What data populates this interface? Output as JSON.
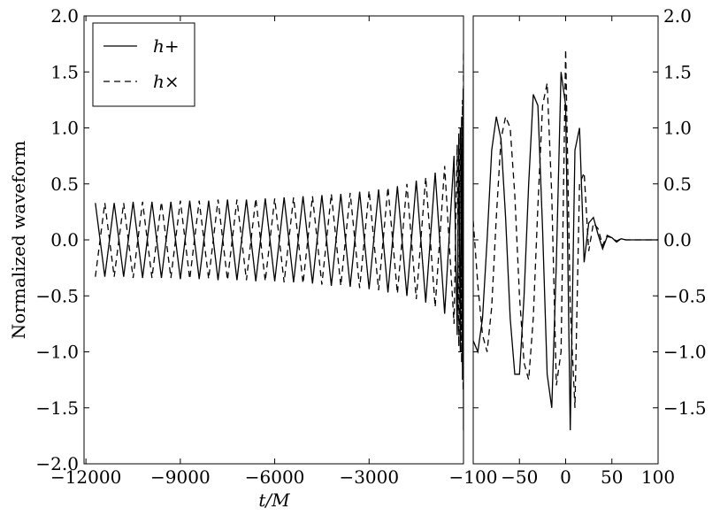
{
  "chart_data": [
    {
      "type": "line",
      "ylabel": "Normalized waveform",
      "xlabel": "t/M",
      "legend": "upper left",
      "xlim": [
        -12060,
        0
      ],
      "ylim": [
        -2,
        2
      ],
      "xticks": [
        {
          "value": -12000,
          "label": "−12000"
        },
        {
          "value": -9000,
          "label": "−9000"
        },
        {
          "value": -6000,
          "label": "−6000"
        },
        {
          "value": -3000,
          "label": "−3000"
        }
      ],
      "yticks": [
        {
          "value": -2,
          "label": "−2.0"
        },
        {
          "value": -1.5,
          "label": "−1.5"
        },
        {
          "value": -1,
          "label": "−1.0"
        },
        {
          "value": -0.5,
          "label": "−0.5"
        },
        {
          "value": 0,
          "label": "0.0"
        },
        {
          "value": 0.5,
          "label": "0.5"
        },
        {
          "value": 1,
          "label": "1.0"
        },
        {
          "value": 1.5,
          "label": "1.5"
        },
        {
          "value": 2,
          "label": "2.0"
        }
      ],
      "yaxis_side": "left",
      "x": [
        -11700,
        -11400,
        -11100,
        -10800,
        -10500,
        -10200,
        -9900,
        -9600,
        -9300,
        -9000,
        -8700,
        -8400,
        -8100,
        -7800,
        -7500,
        -7200,
        -6900,
        -6600,
        -6300,
        -6000,
        -5700,
        -5400,
        -5100,
        -4800,
        -4500,
        -4200,
        -3900,
        -3600,
        -3300,
        -3000,
        -2700,
        -2400,
        -2100,
        -1800,
        -1500,
        -1200,
        -900,
        -600,
        -300,
        -200,
        -150,
        -100,
        -60,
        -30,
        -10,
        0
      ],
      "series": [
        {
          "name": "h+",
          "color": "#000000",
          "dash": "solid",
          "values": [
            0.33,
            -0.33,
            0.33,
            -0.33,
            0.34,
            -0.34,
            0.34,
            -0.34,
            0.34,
            -0.35,
            0.35,
            -0.35,
            0.35,
            -0.36,
            0.36,
            -0.36,
            0.36,
            -0.37,
            0.37,
            -0.37,
            0.38,
            -0.38,
            0.39,
            -0.39,
            0.4,
            -0.41,
            0.41,
            -0.42,
            0.43,
            -0.44,
            0.45,
            -0.47,
            0.48,
            -0.5,
            0.53,
            -0.56,
            0.6,
            -0.66,
            0.75,
            -0.85,
            0.95,
            -1.0,
            1.1,
            -1.25,
            1.35,
            -1.7
          ]
        },
        {
          "name": "h×",
          "color": "#000000",
          "dash": "dashed",
          "values": [
            -0.33,
            0.33,
            -0.33,
            0.33,
            -0.34,
            0.34,
            -0.34,
            0.34,
            -0.34,
            0.35,
            -0.35,
            0.35,
            -0.35,
            0.36,
            -0.36,
            0.36,
            -0.36,
            0.37,
            -0.37,
            0.37,
            -0.38,
            0.38,
            -0.39,
            0.39,
            -0.4,
            0.41,
            -0.41,
            0.42,
            -0.43,
            0.44,
            -0.45,
            0.47,
            -0.48,
            0.5,
            -0.53,
            0.56,
            -0.6,
            0.66,
            -0.75,
            0.85,
            -0.95,
            1.0,
            -1.1,
            1.25,
            -1.35,
            1.7
          ]
        }
      ]
    },
    {
      "type": "line",
      "xlim": [
        -100,
        100
      ],
      "ylim": [
        -2,
        2
      ],
      "xticks": [
        {
          "value": -100,
          "label": "−100"
        },
        {
          "value": -50,
          "label": "−50"
        },
        0,
        50,
        100
      ],
      "yticks": [
        {
          "value": -1.5,
          "label": "−1.5"
        },
        {
          "value": -1,
          "label": "−1.0"
        },
        {
          "value": -0.5,
          "label": "−0.5"
        },
        {
          "value": 0,
          "label": "0.0"
        },
        {
          "value": 0.5,
          "label": "0.5"
        },
        {
          "value": 1,
          "label": "1.0"
        },
        {
          "value": 1.5,
          "label": "1.5"
        },
        {
          "value": 2,
          "label": "2.0"
        }
      ],
      "yaxis_side": "right",
      "x": [
        -100,
        -95,
        -90,
        -85,
        -80,
        -75,
        -70,
        -65,
        -60,
        -55,
        -50,
        -45,
        -40,
        -35,
        -30,
        -25,
        -20,
        -15,
        -10,
        -5,
        0,
        5,
        10,
        15,
        20,
        25,
        30,
        35,
        40,
        45,
        50,
        55,
        60,
        65,
        70,
        75,
        80,
        85,
        90,
        95,
        100
      ],
      "series": [
        {
          "color": "#000000",
          "dash": "solid",
          "values": [
            -0.9,
            -1.0,
            -0.7,
            0.0,
            0.8,
            1.1,
            0.9,
            0.2,
            -0.7,
            -1.2,
            -1.2,
            -0.5,
            0.5,
            1.3,
            1.2,
            0.1,
            -1.2,
            -1.5,
            -0.2,
            1.5,
            1.2,
            -1.7,
            0.8,
            1.0,
            -0.2,
            0.15,
            0.2,
            0.05,
            -0.08,
            0.03,
            0.02,
            -0.02,
            0.01,
            0,
            0,
            0,
            0,
            0,
            0,
            0,
            0
          ]
        },
        {
          "color": "#000000",
          "dash": "dashed",
          "values": [
            0.17,
            -0.4,
            -0.85,
            -1.0,
            -0.6,
            0.2,
            0.9,
            1.1,
            1.0,
            0.4,
            -0.5,
            -1.1,
            -1.25,
            -0.7,
            0.3,
            1.2,
            1.4,
            0.4,
            -1.3,
            -1.0,
            1.7,
            -0.6,
            -1.5,
            0.5,
            0.6,
            -0.1,
            0.15,
            0.1,
            -0.05,
            0.04,
            0.02,
            -0.01,
            0.01,
            0,
            0,
            0,
            0,
            0,
            0,
            0,
            0
          ]
        }
      ]
    }
  ]
}
